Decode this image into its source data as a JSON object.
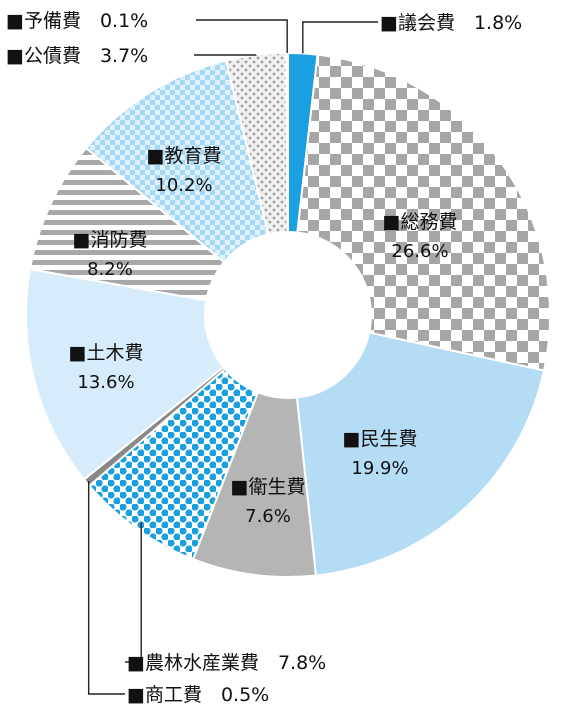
{
  "chart_data": {
    "type": "pie",
    "style": "donut",
    "legend_marker": "■",
    "slices": [
      {
        "name": "議会費",
        "value": 1.8,
        "label": "1.8%",
        "pattern": "solid",
        "color": "#1a9fe0"
      },
      {
        "name": "総務費",
        "value": 26.6,
        "label": "26.6%",
        "pattern": "checker",
        "color": "#a8a8a8"
      },
      {
        "name": "民生費",
        "value": 19.9,
        "label": "19.9%",
        "pattern": "solid",
        "color": "#b4dcf5"
      },
      {
        "name": "衛生費",
        "value": 7.6,
        "label": "7.6%",
        "pattern": "solid",
        "color": "#b5b5b5"
      },
      {
        "name": "農林水産業費",
        "value": 7.8,
        "label": "7.8%",
        "pattern": "dots",
        "color": "#1a9fe0"
      },
      {
        "name": "商工費",
        "value": 0.5,
        "label": "0.5%",
        "pattern": "solid",
        "color": "#888888"
      },
      {
        "name": "土木費",
        "value": 13.6,
        "label": "13.6%",
        "pattern": "solid",
        "color": "#d6ecfa"
      },
      {
        "name": "消防費",
        "value": 8.2,
        "label": "8.2%",
        "pattern": "stripes",
        "color": "#a8a8a8"
      },
      {
        "name": "教育費",
        "value": 10.2,
        "label": "10.2%",
        "pattern": "check-light",
        "color": "#9fd4f5"
      },
      {
        "name": "公債費",
        "value": 3.7,
        "label": "3.7%",
        "pattern": "dots-small",
        "color": "#bdbdbd"
      },
      {
        "name": "予備費",
        "value": 0.1,
        "label": "0.1%",
        "pattern": "solid",
        "color": "#888888"
      }
    ]
  }
}
